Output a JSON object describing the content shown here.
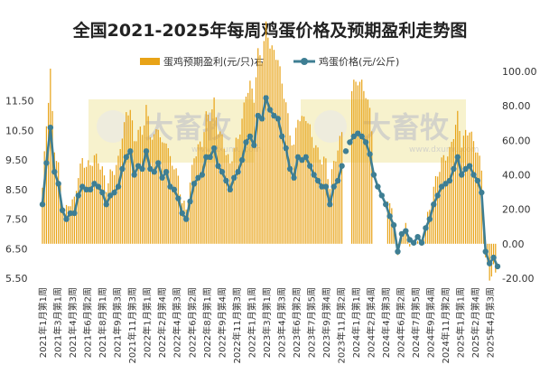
{
  "chart_data": {
    "type": "bar+line",
    "title": "全国2021-2025年每周鸡蛋价格及预期盈利走势图",
    "legend": [
      {
        "label": "蛋鸡预期盈利(元/只)右",
        "color": "#E8A317",
        "kind": "bar"
      },
      {
        "label": "鸡蛋价格(元/公斤)",
        "color": "#3E7E93",
        "kind": "line"
      }
    ],
    "left_axis": {
      "min": 5.5,
      "max": 12.5,
      "ticks": [
        "5.50",
        "6.50",
        "7.50",
        "8.50",
        "9.50",
        "10.50",
        "11.50"
      ]
    },
    "right_axis": {
      "min": -20,
      "max": 100,
      "ticks": [
        "-20.00",
        "0.00",
        "20.00",
        "40.00",
        "60.00",
        "80.00",
        "100.00"
      ]
    },
    "x_labels": [
      "2021年1月第1周",
      "2021年3月第1周",
      "2021年4月第3周",
      "2021年6月第2周",
      "2021年8月第1周",
      "2021年9月第3周",
      "2021年11月第3周",
      "2022年1月第1周",
      "2022年2月第4周",
      "2022年4月第3周",
      "2022年6月第2周",
      "2022年8月第1周",
      "2022年9月第4周",
      "2022年11月第3周",
      "2022年1月第1周",
      "2023年3月第1周",
      "2023年4月第3周",
      "2023年6月第2周",
      "2023年7月第5周",
      "2023年9月第4周",
      "2023年11月第2周",
      "2024年1月第1周",
      "2024年2月第4周",
      "2024年4月第3周",
      "2024年6月第2周",
      "2024年7月第5周",
      "2024年9月第4周",
      "2024年11月第2周",
      "2025年1月第1周",
      "2025年2月第4周",
      "2025年4月第3周"
    ],
    "x_labels_note": "Tick labels are read from the axis; the 15th label (2023年1月第1周) is printed as shown in the image.",
    "watermark": {
      "brand": "大畜牧",
      "url": "www.dxumu.com"
    },
    "weeks": 228,
    "egg_price_x": [
      0,
      2,
      4,
      6,
      8,
      10,
      12,
      14,
      16,
      18,
      20,
      22,
      24,
      26,
      28,
      30,
      32,
      34,
      36,
      38,
      40,
      42,
      44,
      46,
      48,
      50,
      52,
      54,
      56,
      58,
      60,
      62,
      64,
      66,
      68,
      70,
      72,
      74,
      76,
      78,
      80,
      82,
      84,
      86,
      88,
      90,
      92,
      94,
      96,
      98,
      100,
      102,
      104,
      106,
      108,
      110,
      112,
      114,
      116,
      118,
      120,
      122,
      124,
      126,
      128,
      130,
      132,
      134,
      136,
      138,
      140,
      142,
      144,
      146,
      148,
      150,
      152,
      154,
      156,
      158,
      160,
      162,
      164,
      166,
      168,
      170,
      172,
      174,
      176,
      178,
      180,
      182,
      184,
      186,
      188,
      190,
      192,
      194,
      196,
      198,
      200,
      202,
      204,
      206,
      208,
      210,
      212,
      214,
      216,
      218,
      220,
      222,
      224,
      226,
      228
    ],
    "egg_price": [
      8.0,
      9.4,
      10.6,
      9.1,
      8.7,
      7.8,
      7.5,
      7.7,
      7.7,
      8.3,
      8.6,
      8.5,
      8.5,
      8.7,
      8.6,
      8.4,
      8.0,
      8.3,
      8.4,
      8.6,
      9.2,
      9.6,
      9.8,
      9.0,
      9.3,
      9.2,
      9.8,
      9.2,
      9.1,
      9.4,
      8.9,
      9.1,
      8.6,
      8.5,
      8.2,
      7.7,
      7.5,
      8.1,
      8.7,
      8.9,
      9.0,
      9.6,
      9.6,
      9.9,
      9.3,
      9.1,
      8.8,
      8.5,
      8.9,
      9.1,
      9.5,
      10.1,
      10.3,
      10.0,
      11.0,
      10.9,
      11.6,
      11.2,
      11.0,
      10.9,
      10.3,
      9.9,
      9.2,
      8.9,
      9.6,
      9.5,
      9.6,
      9.3,
      9.0,
      8.8,
      8.6,
      8.6,
      8.0,
      8.6,
      8.8,
      9.3,
      9.8,
      10.1,
      10.3,
      10.4,
      10.3,
      10.1,
      9.7,
      9.0,
      8.6,
      8.3,
      8.0,
      7.6,
      7.3,
      6.4,
      7.0,
      7.1,
      6.8,
      6.7,
      6.9,
      6.7,
      7.2,
      7.5,
      8.0,
      8.3,
      8.6,
      8.7,
      8.8,
      9.2,
      9.6,
      9.0,
      9.2,
      9.3,
      9.0,
      8.8,
      8.4,
      6.4,
      6.0,
      6.2,
      5.9
    ]
  }
}
